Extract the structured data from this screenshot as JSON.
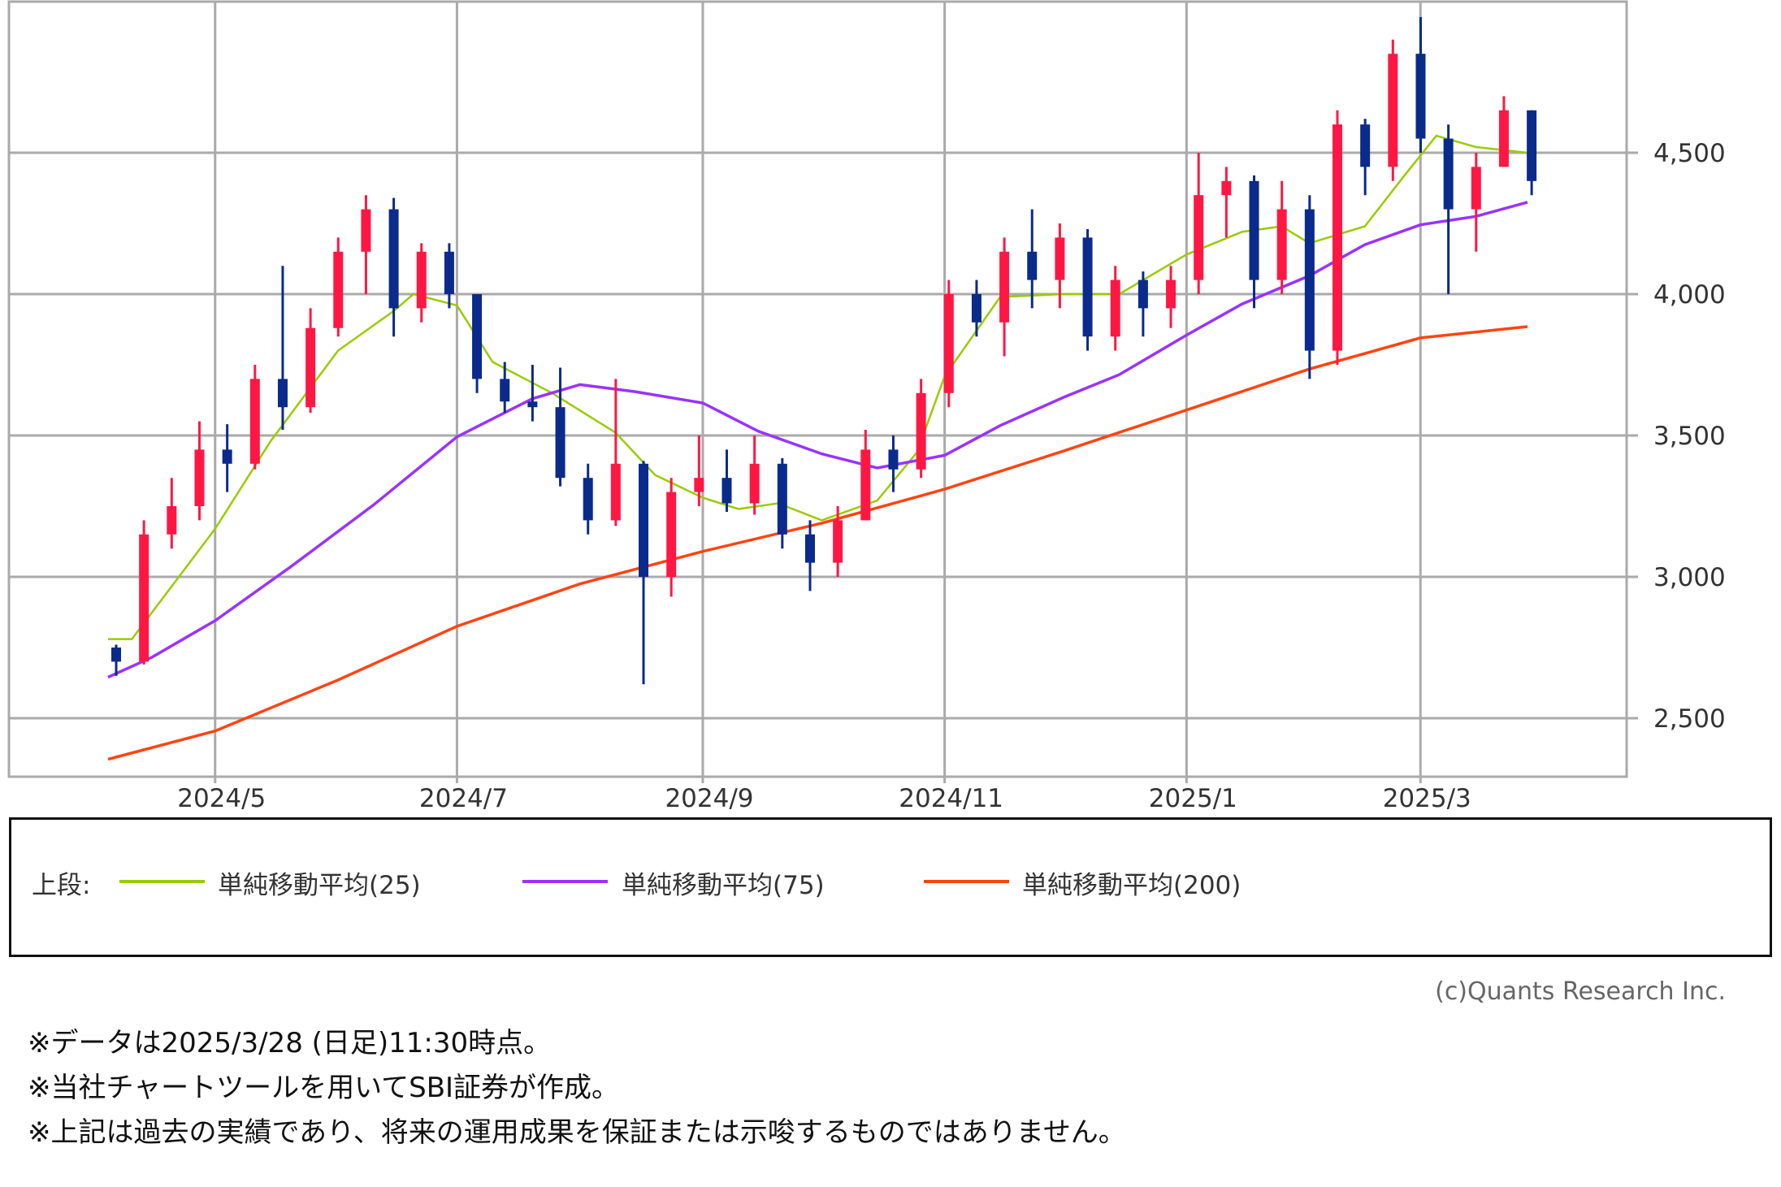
{
  "chart_data": {
    "type": "candlestick",
    "title": "",
    "xlabel": "",
    "ylabel": "",
    "ylim": [
      2300,
      4980
    ],
    "grid": true,
    "y_ticks": [
      2500,
      3000,
      3500,
      4000,
      4500
    ],
    "y_tick_labels": [
      "2,500",
      "3,000",
      "3,500",
      "4,000",
      "4,500"
    ],
    "x_range": [
      "2024-04-04",
      "2025-03-28"
    ],
    "x_ticks": [
      "2024-05-01",
      "2024-07-01",
      "2024-09-01",
      "2024-11-01",
      "2025-01-01",
      "2025-03-01"
    ],
    "x_tick_labels": [
      "2024/5",
      "2024/7",
      "2024/9",
      "2024/11",
      "2025/1",
      "2025/3"
    ],
    "up_color": "#ff1744",
    "down_color": "#0a2a8c",
    "candles_ohlc": [
      [
        "2024-04-04",
        2750,
        2760,
        2650,
        2700
      ],
      [
        "2024-04-11",
        2700,
        3200,
        2690,
        3150
      ],
      [
        "2024-04-18",
        3150,
        3350,
        3100,
        3250
      ],
      [
        "2024-04-25",
        3250,
        3550,
        3200,
        3450
      ],
      [
        "2024-05-02",
        3450,
        3540,
        3300,
        3400
      ],
      [
        "2024-05-09",
        3400,
        3750,
        3380,
        3700
      ],
      [
        "2024-05-16",
        3700,
        4100,
        3520,
        3600
      ],
      [
        "2024-05-23",
        3600,
        3950,
        3580,
        3880
      ],
      [
        "2024-05-30",
        3880,
        4200,
        3850,
        4150
      ],
      [
        "2024-06-06",
        4150,
        4350,
        4000,
        4300
      ],
      [
        "2024-06-13",
        4300,
        4340,
        3850,
        3950
      ],
      [
        "2024-06-20",
        3950,
        4180,
        3900,
        4150
      ],
      [
        "2024-06-27",
        4150,
        4180,
        3950,
        4000
      ],
      [
        "2024-07-04",
        4000,
        4000,
        3650,
        3700
      ],
      [
        "2024-07-11",
        3700,
        3760,
        3580,
        3620
      ],
      [
        "2024-07-18",
        3620,
        3750,
        3550,
        3600
      ],
      [
        "2024-07-25",
        3600,
        3740,
        3320,
        3350
      ],
      [
        "2024-08-01",
        3350,
        3400,
        3150,
        3200
      ],
      [
        "2024-08-08",
        3200,
        3700,
        3180,
        3400
      ],
      [
        "2024-08-15",
        3400,
        3410,
        2620,
        3000
      ],
      [
        "2024-08-22",
        3000,
        3350,
        2930,
        3300
      ],
      [
        "2024-08-29",
        3300,
        3500,
        3250,
        3350
      ],
      [
        "2024-09-05",
        3350,
        3450,
        3230,
        3260
      ],
      [
        "2024-09-12",
        3260,
        3500,
        3220,
        3400
      ],
      [
        "2024-09-19",
        3400,
        3420,
        3100,
        3150
      ],
      [
        "2024-09-26",
        3150,
        3200,
        2950,
        3050
      ],
      [
        "2024-10-03",
        3050,
        3250,
        3000,
        3200
      ],
      [
        "2024-10-10",
        3200,
        3520,
        3200,
        3450
      ],
      [
        "2024-10-17",
        3450,
        3500,
        3300,
        3380
      ],
      [
        "2024-10-24",
        3380,
        3700,
        3350,
        3650
      ],
      [
        "2024-10-31",
        3650,
        4050,
        3600,
        4000
      ],
      [
        "2024-11-07",
        4000,
        4050,
        3850,
        3900
      ],
      [
        "2024-11-14",
        3900,
        4200,
        3780,
        4150
      ],
      [
        "2024-11-21",
        4150,
        4300,
        3950,
        4050
      ],
      [
        "2024-11-28",
        4050,
        4250,
        3950,
        4200
      ],
      [
        "2024-12-05",
        4200,
        4230,
        3800,
        3850
      ],
      [
        "2024-12-12",
        3850,
        4100,
        3800,
        4050
      ],
      [
        "2024-12-19",
        4050,
        4080,
        3850,
        3950
      ],
      [
        "2024-12-26",
        3950,
        4100,
        3880,
        4050
      ],
      [
        "2025-01-02",
        4050,
        4500,
        4000,
        4350
      ],
      [
        "2025-01-09",
        4350,
        4450,
        4200,
        4400
      ],
      [
        "2025-01-16",
        4400,
        4420,
        3950,
        4050
      ],
      [
        "2025-01-23",
        4050,
        4400,
        4000,
        4300
      ],
      [
        "2025-01-30",
        4300,
        4350,
        3700,
        3800
      ],
      [
        "2025-02-06",
        3800,
        4650,
        3750,
        4600
      ],
      [
        "2025-02-13",
        4600,
        4620,
        4350,
        4450
      ],
      [
        "2025-02-20",
        4450,
        4900,
        4400,
        4850
      ],
      [
        "2025-02-27",
        4850,
        4980,
        4500,
        4550
      ],
      [
        "2025-03-06",
        4550,
        4600,
        4000,
        4300
      ],
      [
        "2025-03-13",
        4300,
        4500,
        4150,
        4450
      ],
      [
        "2025-03-20",
        4450,
        4700,
        4450,
        4650
      ],
      [
        "2025-03-27",
        4650,
        4650,
        4350,
        4400
      ]
    ],
    "series": [
      {
        "name": "単純移動平均(25)",
        "color": "#99cc00",
        "points": [
          [
            "2024-04-04",
            2780
          ],
          [
            "2024-04-10",
            2780
          ],
          [
            "2024-05-01",
            3170
          ],
          [
            "2024-05-15",
            3480
          ],
          [
            "2024-06-01",
            3800
          ],
          [
            "2024-06-15",
            3940
          ],
          [
            "2024-06-20",
            4000
          ],
          [
            "2024-07-01",
            3960
          ],
          [
            "2024-07-10",
            3760
          ],
          [
            "2024-07-25",
            3650
          ],
          [
            "2024-08-10",
            3510
          ],
          [
            "2024-08-20",
            3360
          ],
          [
            "2024-09-01",
            3280
          ],
          [
            "2024-09-10",
            3240
          ],
          [
            "2024-09-20",
            3260
          ],
          [
            "2024-10-01",
            3200
          ],
          [
            "2024-10-15",
            3270
          ],
          [
            "2024-10-25",
            3440
          ],
          [
            "2024-11-01",
            3710
          ],
          [
            "2024-11-15",
            3990
          ],
          [
            "2024-12-01",
            4000
          ],
          [
            "2024-12-15",
            4000
          ],
          [
            "2025-01-01",
            4140
          ],
          [
            "2025-01-15",
            4220
          ],
          [
            "2025-01-25",
            4240
          ],
          [
            "2025-02-01",
            4180
          ],
          [
            "2025-02-15",
            4240
          ],
          [
            "2025-02-25",
            4420
          ],
          [
            "2025-03-05",
            4560
          ],
          [
            "2025-03-15",
            4520
          ],
          [
            "2025-03-28",
            4500
          ]
        ]
      },
      {
        "name": "単純移動平均(75)",
        "color": "#9933ff",
        "points": [
          [
            "2024-04-04",
            2645
          ],
          [
            "2024-04-15",
            2715
          ],
          [
            "2024-05-01",
            2845
          ],
          [
            "2024-05-20",
            3035
          ],
          [
            "2024-06-10",
            3255
          ],
          [
            "2024-07-01",
            3495
          ],
          [
            "2024-07-20",
            3630
          ],
          [
            "2024-08-01",
            3680
          ],
          [
            "2024-08-15",
            3655
          ],
          [
            "2024-09-01",
            3615
          ],
          [
            "2024-09-15",
            3515
          ],
          [
            "2024-10-01",
            3435
          ],
          [
            "2024-10-15",
            3385
          ],
          [
            "2024-11-01",
            3430
          ],
          [
            "2024-11-15",
            3535
          ],
          [
            "2024-12-01",
            3635
          ],
          [
            "2024-12-15",
            3715
          ],
          [
            "2025-01-01",
            3855
          ],
          [
            "2025-01-15",
            3965
          ],
          [
            "2025-02-01",
            4065
          ],
          [
            "2025-02-15",
            4175
          ],
          [
            "2025-03-01",
            4245
          ],
          [
            "2025-03-15",
            4275
          ],
          [
            "2025-03-28",
            4325
          ]
        ]
      },
      {
        "name": "単純移動平均(200)",
        "color": "#ff4411",
        "points": [
          [
            "2024-04-04",
            2355
          ],
          [
            "2024-05-01",
            2455
          ],
          [
            "2024-06-01",
            2635
          ],
          [
            "2024-07-01",
            2825
          ],
          [
            "2024-08-01",
            2975
          ],
          [
            "2024-09-01",
            3090
          ],
          [
            "2024-10-01",
            3190
          ],
          [
            "2024-11-01",
            3310
          ],
          [
            "2024-12-01",
            3445
          ],
          [
            "2025-01-01",
            3590
          ],
          [
            "2025-02-01",
            3735
          ],
          [
            "2025-03-01",
            3845
          ],
          [
            "2025-03-28",
            3885
          ]
        ]
      }
    ]
  },
  "legend": {
    "prefix": "上段:",
    "items": [
      "単純移動平均(25)",
      "単純移動平均(75)",
      "単純移動平均(200)"
    ],
    "colors": [
      "#99cc00",
      "#9933ff",
      "#ff4411"
    ]
  },
  "copyright": "(c)Quants Research Inc.",
  "notes": [
    "※データは2025/3/28 (日足)11:30時点。",
    "※当社チャートツールを用いてSBI証券が作成。",
    "※上記は過去の実績であり、将来の運用成果を保証または示唆するものではありません。"
  ]
}
